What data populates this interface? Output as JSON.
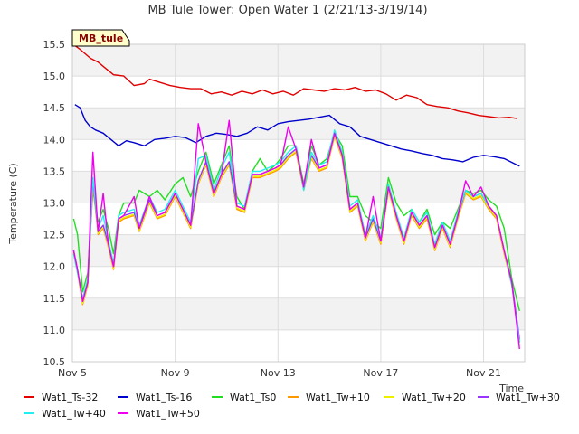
{
  "chart_data": {
    "type": "line",
    "title": "MB Tule Tower: Open Water 1 (2/21/13-3/19/14)",
    "xlabel": "Time",
    "ylabel": "Temperature (C)",
    "site_tag": "MB_tule",
    "xlim": [
      0,
      17.6
    ],
    "ylim": [
      10.5,
      15.5
    ],
    "grid": true,
    "legend_position": "bottom",
    "x_ticks": [
      {
        "x": 0,
        "label": "Nov 5"
      },
      {
        "x": 4,
        "label": "Nov 9"
      },
      {
        "x": 8,
        "label": "Nov 13"
      },
      {
        "x": 12,
        "label": "Nov 17"
      },
      {
        "x": 16,
        "label": "Nov 21"
      }
    ],
    "y_ticks": [
      {
        "y": 10.5,
        "label": "10.5"
      },
      {
        "y": 11.0,
        "label": "11.0"
      },
      {
        "y": 11.5,
        "label": "11.5"
      },
      {
        "y": 12.0,
        "label": "12.0"
      },
      {
        "y": 12.5,
        "label": "12.5"
      },
      {
        "y": 13.0,
        "label": "13.0"
      },
      {
        "y": 13.5,
        "label": "13.5"
      },
      {
        "y": 14.0,
        "label": "14.0"
      },
      {
        "y": 14.5,
        "label": "14.5"
      },
      {
        "y": 15.0,
        "label": "15.0"
      },
      {
        "y": 15.5,
        "label": "15.5"
      }
    ],
    "series": [
      {
        "name": "Wat1_Ts-32",
        "color": "#e00000",
        "x": [
          0.1,
          0.3,
          0.5,
          0.7,
          1.0,
          1.3,
          1.6,
          2.0,
          2.4,
          2.8,
          3.0,
          3.4,
          3.8,
          4.2,
          4.6,
          5.0,
          5.4,
          5.8,
          6.2,
          6.6,
          7.0,
          7.4,
          7.8,
          8.2,
          8.6,
          9.0,
          9.4,
          9.8,
          10.2,
          10.6,
          11.0,
          11.4,
          11.8,
          12.2,
          12.6,
          13.0,
          13.4,
          13.8,
          14.2,
          14.6,
          15.0,
          15.4,
          15.8,
          16.2,
          16.6,
          17.0,
          17.3
        ],
        "values": [
          15.48,
          15.42,
          15.35,
          15.28,
          15.22,
          15.12,
          15.02,
          15.0,
          14.85,
          14.88,
          14.95,
          14.9,
          14.85,
          14.82,
          14.8,
          14.8,
          14.72,
          14.75,
          14.7,
          14.76,
          14.72,
          14.78,
          14.72,
          14.76,
          14.7,
          14.8,
          14.78,
          14.76,
          14.8,
          14.78,
          14.82,
          14.76,
          14.78,
          14.72,
          14.62,
          14.7,
          14.66,
          14.55,
          14.52,
          14.5,
          14.45,
          14.42,
          14.38,
          14.36,
          14.34,
          14.35,
          14.33
        ]
      },
      {
        "name": "Wat1_Ts-16",
        "color": "#0000cc",
        "x": [
          0.1,
          0.3,
          0.5,
          0.7,
          0.9,
          1.2,
          1.5,
          1.8,
          2.1,
          2.4,
          2.8,
          3.2,
          3.6,
          4.0,
          4.4,
          4.8,
          5.2,
          5.6,
          6.0,
          6.4,
          6.8,
          7.2,
          7.6,
          8.0,
          8.4,
          8.8,
          9.2,
          9.6,
          10.0,
          10.4,
          10.8,
          11.2,
          11.6,
          12.0,
          12.4,
          12.8,
          13.2,
          13.6,
          14.0,
          14.4,
          14.8,
          15.2,
          15.6,
          16.0,
          16.4,
          16.8,
          17.2,
          17.4
        ],
        "values": [
          14.55,
          14.5,
          14.3,
          14.2,
          14.15,
          14.1,
          14.0,
          13.9,
          13.98,
          13.95,
          13.9,
          14.0,
          14.02,
          14.05,
          14.03,
          13.95,
          14.05,
          14.1,
          14.08,
          14.05,
          14.1,
          14.2,
          14.15,
          14.25,
          14.28,
          14.3,
          14.32,
          14.35,
          14.38,
          14.25,
          14.2,
          14.05,
          14.0,
          13.95,
          13.9,
          13.85,
          13.82,
          13.78,
          13.75,
          13.7,
          13.68,
          13.65,
          13.72,
          13.75,
          13.73,
          13.7,
          13.62,
          13.58
        ]
      },
      {
        "name": "Wat1_Ts0",
        "color": "#22dd22",
        "x": [
          0.05,
          0.2,
          0.4,
          0.6,
          0.8,
          1.0,
          1.2,
          1.4,
          1.6,
          1.8,
          2.0,
          2.4,
          2.6,
          3.0,
          3.3,
          3.6,
          4.0,
          4.3,
          4.6,
          4.9,
          5.2,
          5.5,
          5.8,
          6.1,
          6.4,
          6.7,
          7.0,
          7.3,
          7.6,
          7.9,
          8.1,
          8.4,
          8.7,
          9.0,
          9.3,
          9.6,
          9.9,
          10.2,
          10.5,
          10.8,
          11.1,
          11.4,
          11.7,
          12.0,
          12.3,
          12.6,
          12.9,
          13.2,
          13.5,
          13.8,
          14.1,
          14.4,
          14.7,
          15.0,
          15.3,
          15.6,
          15.9,
          16.2,
          16.5,
          16.8,
          17.1,
          17.4
        ],
        "values": [
          12.75,
          12.5,
          11.6,
          11.9,
          13.2,
          12.7,
          12.9,
          12.6,
          12.2,
          12.8,
          13.0,
          13.0,
          13.2,
          13.1,
          13.2,
          13.05,
          13.3,
          13.4,
          13.1,
          13.5,
          13.8,
          13.3,
          13.6,
          13.9,
          13.1,
          12.9,
          13.5,
          13.7,
          13.5,
          13.6,
          13.7,
          13.9,
          13.9,
          13.3,
          13.9,
          13.6,
          13.7,
          14.1,
          13.9,
          13.1,
          13.1,
          12.8,
          12.7,
          12.6,
          13.4,
          13.0,
          12.8,
          12.9,
          12.7,
          12.9,
          12.5,
          12.7,
          12.6,
          12.9,
          13.2,
          13.15,
          13.2,
          13.05,
          12.95,
          12.6,
          11.8,
          11.3
        ]
      },
      {
        "name": "Wat1_Tw+10",
        "color": "#ff9900",
        "x": [
          0.05,
          0.2,
          0.4,
          0.6,
          0.8,
          1.0,
          1.2,
          1.4,
          1.6,
          1.8,
          2.0,
          2.4,
          2.6,
          3.0,
          3.3,
          3.6,
          4.0,
          4.3,
          4.6,
          4.9,
          5.2,
          5.5,
          5.8,
          6.1,
          6.4,
          6.7,
          7.0,
          7.3,
          7.6,
          7.9,
          8.1,
          8.4,
          8.7,
          9.0,
          9.3,
          9.6,
          9.9,
          10.2,
          10.5,
          10.8,
          11.1,
          11.4,
          11.7,
          12.0,
          12.3,
          12.6,
          12.9,
          13.2,
          13.5,
          13.8,
          14.1,
          14.4,
          14.7,
          15.0,
          15.3,
          15.6,
          15.9,
          16.2,
          16.5,
          16.8,
          17.1,
          17.4
        ],
        "values": [
          12.2,
          11.9,
          11.4,
          11.7,
          13.3,
          12.5,
          12.6,
          12.3,
          11.95,
          12.7,
          12.75,
          12.8,
          12.55,
          13.0,
          12.75,
          12.8,
          13.1,
          12.85,
          12.6,
          13.3,
          13.6,
          13.1,
          13.4,
          13.6,
          12.9,
          12.85,
          13.4,
          13.4,
          13.45,
          13.5,
          13.55,
          13.7,
          13.8,
          13.2,
          13.7,
          13.5,
          13.55,
          14.05,
          13.7,
          12.85,
          12.95,
          12.4,
          12.7,
          12.35,
          13.2,
          12.75,
          12.35,
          12.8,
          12.6,
          12.75,
          12.25,
          12.6,
          12.3,
          12.75,
          13.15,
          13.05,
          13.1,
          12.9,
          12.75,
          12.2,
          11.7,
          10.8
        ]
      },
      {
        "name": "Wat1_Tw+20",
        "color": "#eeee00",
        "x": [
          0.05,
          0.2,
          0.4,
          0.6,
          0.8,
          1.0,
          1.2,
          1.4,
          1.6,
          1.8,
          2.0,
          2.4,
          2.6,
          3.0,
          3.3,
          3.6,
          4.0,
          4.3,
          4.6,
          4.9,
          5.2,
          5.5,
          5.8,
          6.1,
          6.4,
          6.7,
          7.0,
          7.3,
          7.6,
          7.9,
          8.1,
          8.4,
          8.7,
          9.0,
          9.3,
          9.6,
          9.9,
          10.2,
          10.5,
          10.8,
          11.1,
          11.4,
          11.7,
          12.0,
          12.3,
          12.6,
          12.9,
          13.2,
          13.5,
          13.8,
          14.1,
          14.4,
          14.7,
          15.0,
          15.3,
          15.6,
          15.9,
          16.2,
          16.5,
          16.8,
          17.1,
          17.4
        ],
        "values": [
          12.22,
          11.92,
          11.42,
          11.72,
          13.32,
          12.52,
          12.62,
          12.32,
          11.97,
          12.72,
          12.77,
          12.82,
          12.57,
          13.02,
          12.77,
          12.82,
          13.12,
          12.87,
          12.62,
          13.32,
          13.62,
          13.12,
          13.42,
          13.62,
          12.92,
          12.87,
          13.42,
          13.42,
          13.47,
          13.52,
          13.57,
          13.72,
          13.82,
          13.22,
          13.72,
          13.52,
          13.57,
          14.07,
          13.72,
          12.87,
          12.97,
          12.42,
          12.72,
          12.37,
          13.22,
          12.77,
          12.37,
          12.82,
          12.62,
          12.77,
          12.27,
          12.62,
          12.32,
          12.77,
          13.17,
          13.07,
          13.12,
          12.92,
          12.77,
          12.22,
          11.72,
          10.82
        ]
      },
      {
        "name": "Wat1_Tw+30",
        "color": "#9933ff",
        "x": [
          0.05,
          0.2,
          0.4,
          0.6,
          0.8,
          1.0,
          1.2,
          1.4,
          1.6,
          1.8,
          2.0,
          2.4,
          2.6,
          3.0,
          3.3,
          3.6,
          4.0,
          4.3,
          4.6,
          4.9,
          5.2,
          5.5,
          5.8,
          6.1,
          6.4,
          6.7,
          7.0,
          7.3,
          7.6,
          7.9,
          8.1,
          8.4,
          8.7,
          9.0,
          9.3,
          9.6,
          9.9,
          10.2,
          10.5,
          10.8,
          11.1,
          11.4,
          11.7,
          12.0,
          12.3,
          12.6,
          12.9,
          13.2,
          13.5,
          13.8,
          14.1,
          14.4,
          14.7,
          15.0,
          15.3,
          15.6,
          15.9,
          16.2,
          16.5,
          16.8,
          17.1,
          17.4
        ],
        "values": [
          12.25,
          11.95,
          11.45,
          11.75,
          13.35,
          12.55,
          12.65,
          12.35,
          12.0,
          12.75,
          12.8,
          12.85,
          12.6,
          13.05,
          12.8,
          12.85,
          13.15,
          12.9,
          12.65,
          13.35,
          13.65,
          13.15,
          13.45,
          13.65,
          12.95,
          12.9,
          13.45,
          13.45,
          13.5,
          13.55,
          13.6,
          13.75,
          13.85,
          13.25,
          13.75,
          13.55,
          13.6,
          14.1,
          13.75,
          12.9,
          13.0,
          12.45,
          12.75,
          12.4,
          13.25,
          12.8,
          12.4,
          12.85,
          12.65,
          12.8,
          12.3,
          12.65,
          12.35,
          12.8,
          13.2,
          13.1,
          13.15,
          12.95,
          12.8,
          12.25,
          11.75,
          10.85
        ]
      },
      {
        "name": "Wat1_Tw+40",
        "color": "#22eeee",
        "x": [
          0.05,
          0.2,
          0.4,
          0.6,
          0.8,
          1.0,
          1.2,
          1.4,
          1.6,
          1.8,
          2.0,
          2.4,
          2.6,
          3.0,
          3.3,
          3.6,
          4.0,
          4.3,
          4.6,
          4.9,
          5.2,
          5.5,
          5.8,
          6.1,
          6.4,
          6.7,
          7.0,
          7.3,
          7.6,
          7.9,
          8.1,
          8.4,
          8.7,
          9.0,
          9.3,
          9.6,
          9.9,
          10.2,
          10.5,
          10.8,
          11.1,
          11.4,
          11.7,
          12.0,
          12.3,
          12.6,
          12.9,
          13.2,
          13.5,
          13.8,
          14.1,
          14.4,
          14.7,
          15.0,
          15.3,
          15.6,
          15.9,
          16.2,
          16.5,
          16.8,
          17.1,
          17.4
        ],
        "values": [
          12.2,
          11.9,
          11.5,
          11.8,
          13.4,
          12.6,
          12.8,
          12.4,
          12.05,
          12.8,
          12.85,
          12.9,
          12.65,
          13.1,
          12.85,
          12.9,
          13.2,
          12.95,
          12.7,
          13.7,
          13.75,
          13.2,
          13.55,
          13.8,
          13.0,
          12.95,
          13.5,
          13.5,
          13.55,
          13.6,
          13.65,
          13.8,
          13.9,
          13.2,
          13.8,
          13.6,
          13.65,
          14.15,
          13.8,
          12.95,
          13.05,
          12.5,
          12.8,
          12.45,
          13.3,
          12.85,
          12.45,
          12.9,
          12.7,
          12.85,
          12.35,
          12.7,
          12.4,
          12.85,
          13.2,
          13.1,
          13.15,
          12.95,
          12.8,
          12.25,
          11.7,
          10.8
        ]
      },
      {
        "name": "Wat1_Tw+50",
        "color": "#ee00ee",
        "x": [
          0.05,
          0.2,
          0.4,
          0.6,
          0.8,
          1.0,
          1.2,
          1.4,
          1.6,
          1.8,
          2.0,
          2.4,
          2.6,
          3.0,
          3.3,
          3.6,
          4.0,
          4.3,
          4.6,
          4.9,
          5.2,
          5.5,
          5.8,
          6.1,
          6.4,
          6.7,
          7.0,
          7.3,
          7.6,
          7.9,
          8.1,
          8.4,
          8.7,
          9.0,
          9.3,
          9.6,
          9.9,
          10.2,
          10.5,
          10.8,
          11.1,
          11.4,
          11.7,
          12.0,
          12.3,
          12.6,
          12.9,
          13.2,
          13.5,
          13.8,
          14.1,
          14.4,
          14.7,
          15.0,
          15.3,
          15.6,
          15.9,
          16.2,
          16.5,
          16.8,
          17.1,
          17.4
        ],
        "values": [
          12.25,
          11.95,
          11.45,
          11.75,
          13.8,
          12.55,
          13.15,
          12.35,
          12.0,
          12.75,
          12.8,
          13.1,
          12.6,
          13.1,
          12.8,
          12.85,
          13.15,
          12.9,
          12.65,
          14.25,
          13.65,
          13.15,
          13.45,
          14.3,
          12.95,
          12.9,
          13.45,
          13.45,
          13.5,
          13.55,
          13.6,
          14.2,
          13.85,
          13.25,
          14.0,
          13.55,
          13.6,
          14.1,
          13.75,
          12.9,
          13.0,
          12.45,
          13.1,
          12.4,
          13.25,
          12.8,
          12.4,
          12.85,
          12.65,
          12.8,
          12.3,
          12.65,
          12.35,
          12.8,
          13.35,
          13.1,
          13.25,
          12.95,
          12.8,
          12.25,
          11.75,
          10.7
        ]
      }
    ]
  }
}
